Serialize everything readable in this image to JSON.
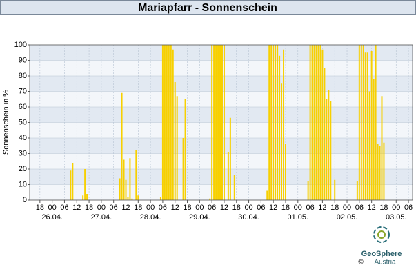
{
  "chart_data": {
    "type": "bar",
    "title": "Mariapfarr - Sonnenschein",
    "y_label": "Sonnenschein in %",
    "color": "#f7d000",
    "grid": true,
    "ylim": [
      0,
      100
    ],
    "yticks": [
      0,
      10,
      20,
      30,
      40,
      50,
      60,
      70,
      80,
      90,
      100
    ],
    "xlim": [
      -11,
      176
    ],
    "xticks": [
      {
        "value": -6,
        "label": "18"
      },
      {
        "value": 0,
        "label": "00"
      },
      {
        "value": 6,
        "label": "06"
      },
      {
        "value": 12,
        "label": "12"
      },
      {
        "value": 18,
        "label": "18"
      },
      {
        "value": 24,
        "label": "00"
      },
      {
        "value": 30,
        "label": "06"
      },
      {
        "value": 36,
        "label": "12"
      },
      {
        "value": 42,
        "label": "18"
      },
      {
        "value": 48,
        "label": "00"
      },
      {
        "value": 54,
        "label": "06"
      },
      {
        "value": 60,
        "label": "12"
      },
      {
        "value": 66,
        "label": "18"
      },
      {
        "value": 72,
        "label": "00"
      },
      {
        "value": 78,
        "label": "06"
      },
      {
        "value": 84,
        "label": "12"
      },
      {
        "value": 90,
        "label": "18"
      },
      {
        "value": 96,
        "label": "00"
      },
      {
        "value": 102,
        "label": "06"
      },
      {
        "value": 108,
        "label": "12"
      },
      {
        "value": 114,
        "label": "18"
      },
      {
        "value": 120,
        "label": "00"
      },
      {
        "value": 126,
        "label": "06"
      },
      {
        "value": 132,
        "label": "12"
      },
      {
        "value": 138,
        "label": "18"
      },
      {
        "value": 144,
        "label": "00"
      },
      {
        "value": 150,
        "label": "06"
      },
      {
        "value": 156,
        "label": "12"
      },
      {
        "value": 162,
        "label": "18"
      },
      {
        "value": 168,
        "label": "00"
      },
      {
        "value": 174,
        "label": "06"
      }
    ],
    "date_labels": [
      {
        "value": 0,
        "label": "26.04."
      },
      {
        "value": 24,
        "label": "27.04."
      },
      {
        "value": 48,
        "label": "28.04."
      },
      {
        "value": 72,
        "label": "29.04."
      },
      {
        "value": 96,
        "label": "30.04."
      },
      {
        "value": 120,
        "label": "01.05."
      },
      {
        "value": 144,
        "label": "02.05."
      },
      {
        "value": 168,
        "label": "03.05."
      }
    ],
    "x": [
      9,
      10,
      15,
      16,
      17,
      33,
      34,
      35,
      36,
      37,
      38,
      39,
      41,
      42,
      53,
      54,
      55,
      56,
      57,
      58,
      59,
      60,
      61,
      64,
      65,
      77,
      78,
      79,
      80,
      81,
      82,
      83,
      84,
      86,
      87,
      89,
      105,
      106,
      107,
      108,
      109,
      110,
      111,
      112,
      113,
      114,
      125,
      126,
      127,
      128,
      129,
      130,
      131,
      132,
      133,
      134,
      135,
      136,
      138,
      149,
      150,
      151,
      152,
      153,
      154,
      155,
      156,
      157,
      158,
      159,
      160,
      161,
      162
    ],
    "values": [
      19,
      24,
      3,
      20,
      4,
      14,
      69,
      26,
      13,
      2,
      27,
      1,
      32,
      3,
      2,
      100,
      100,
      100,
      100,
      100,
      97,
      76,
      67,
      40,
      65,
      1,
      100,
      100,
      100,
      100,
      100,
      100,
      100,
      31,
      53,
      16,
      6,
      100,
      100,
      100,
      100,
      100,
      93,
      75,
      97,
      36,
      12,
      100,
      100,
      100,
      100,
      100,
      100,
      97,
      85,
      65,
      71,
      64,
      13,
      12,
      100,
      100,
      100,
      95,
      95,
      70,
      96,
      78,
      100,
      36,
      35,
      67,
      37
    ]
  },
  "logo": {
    "name": "GeoSphere",
    "sub": "Austria",
    "copyright": "©"
  }
}
